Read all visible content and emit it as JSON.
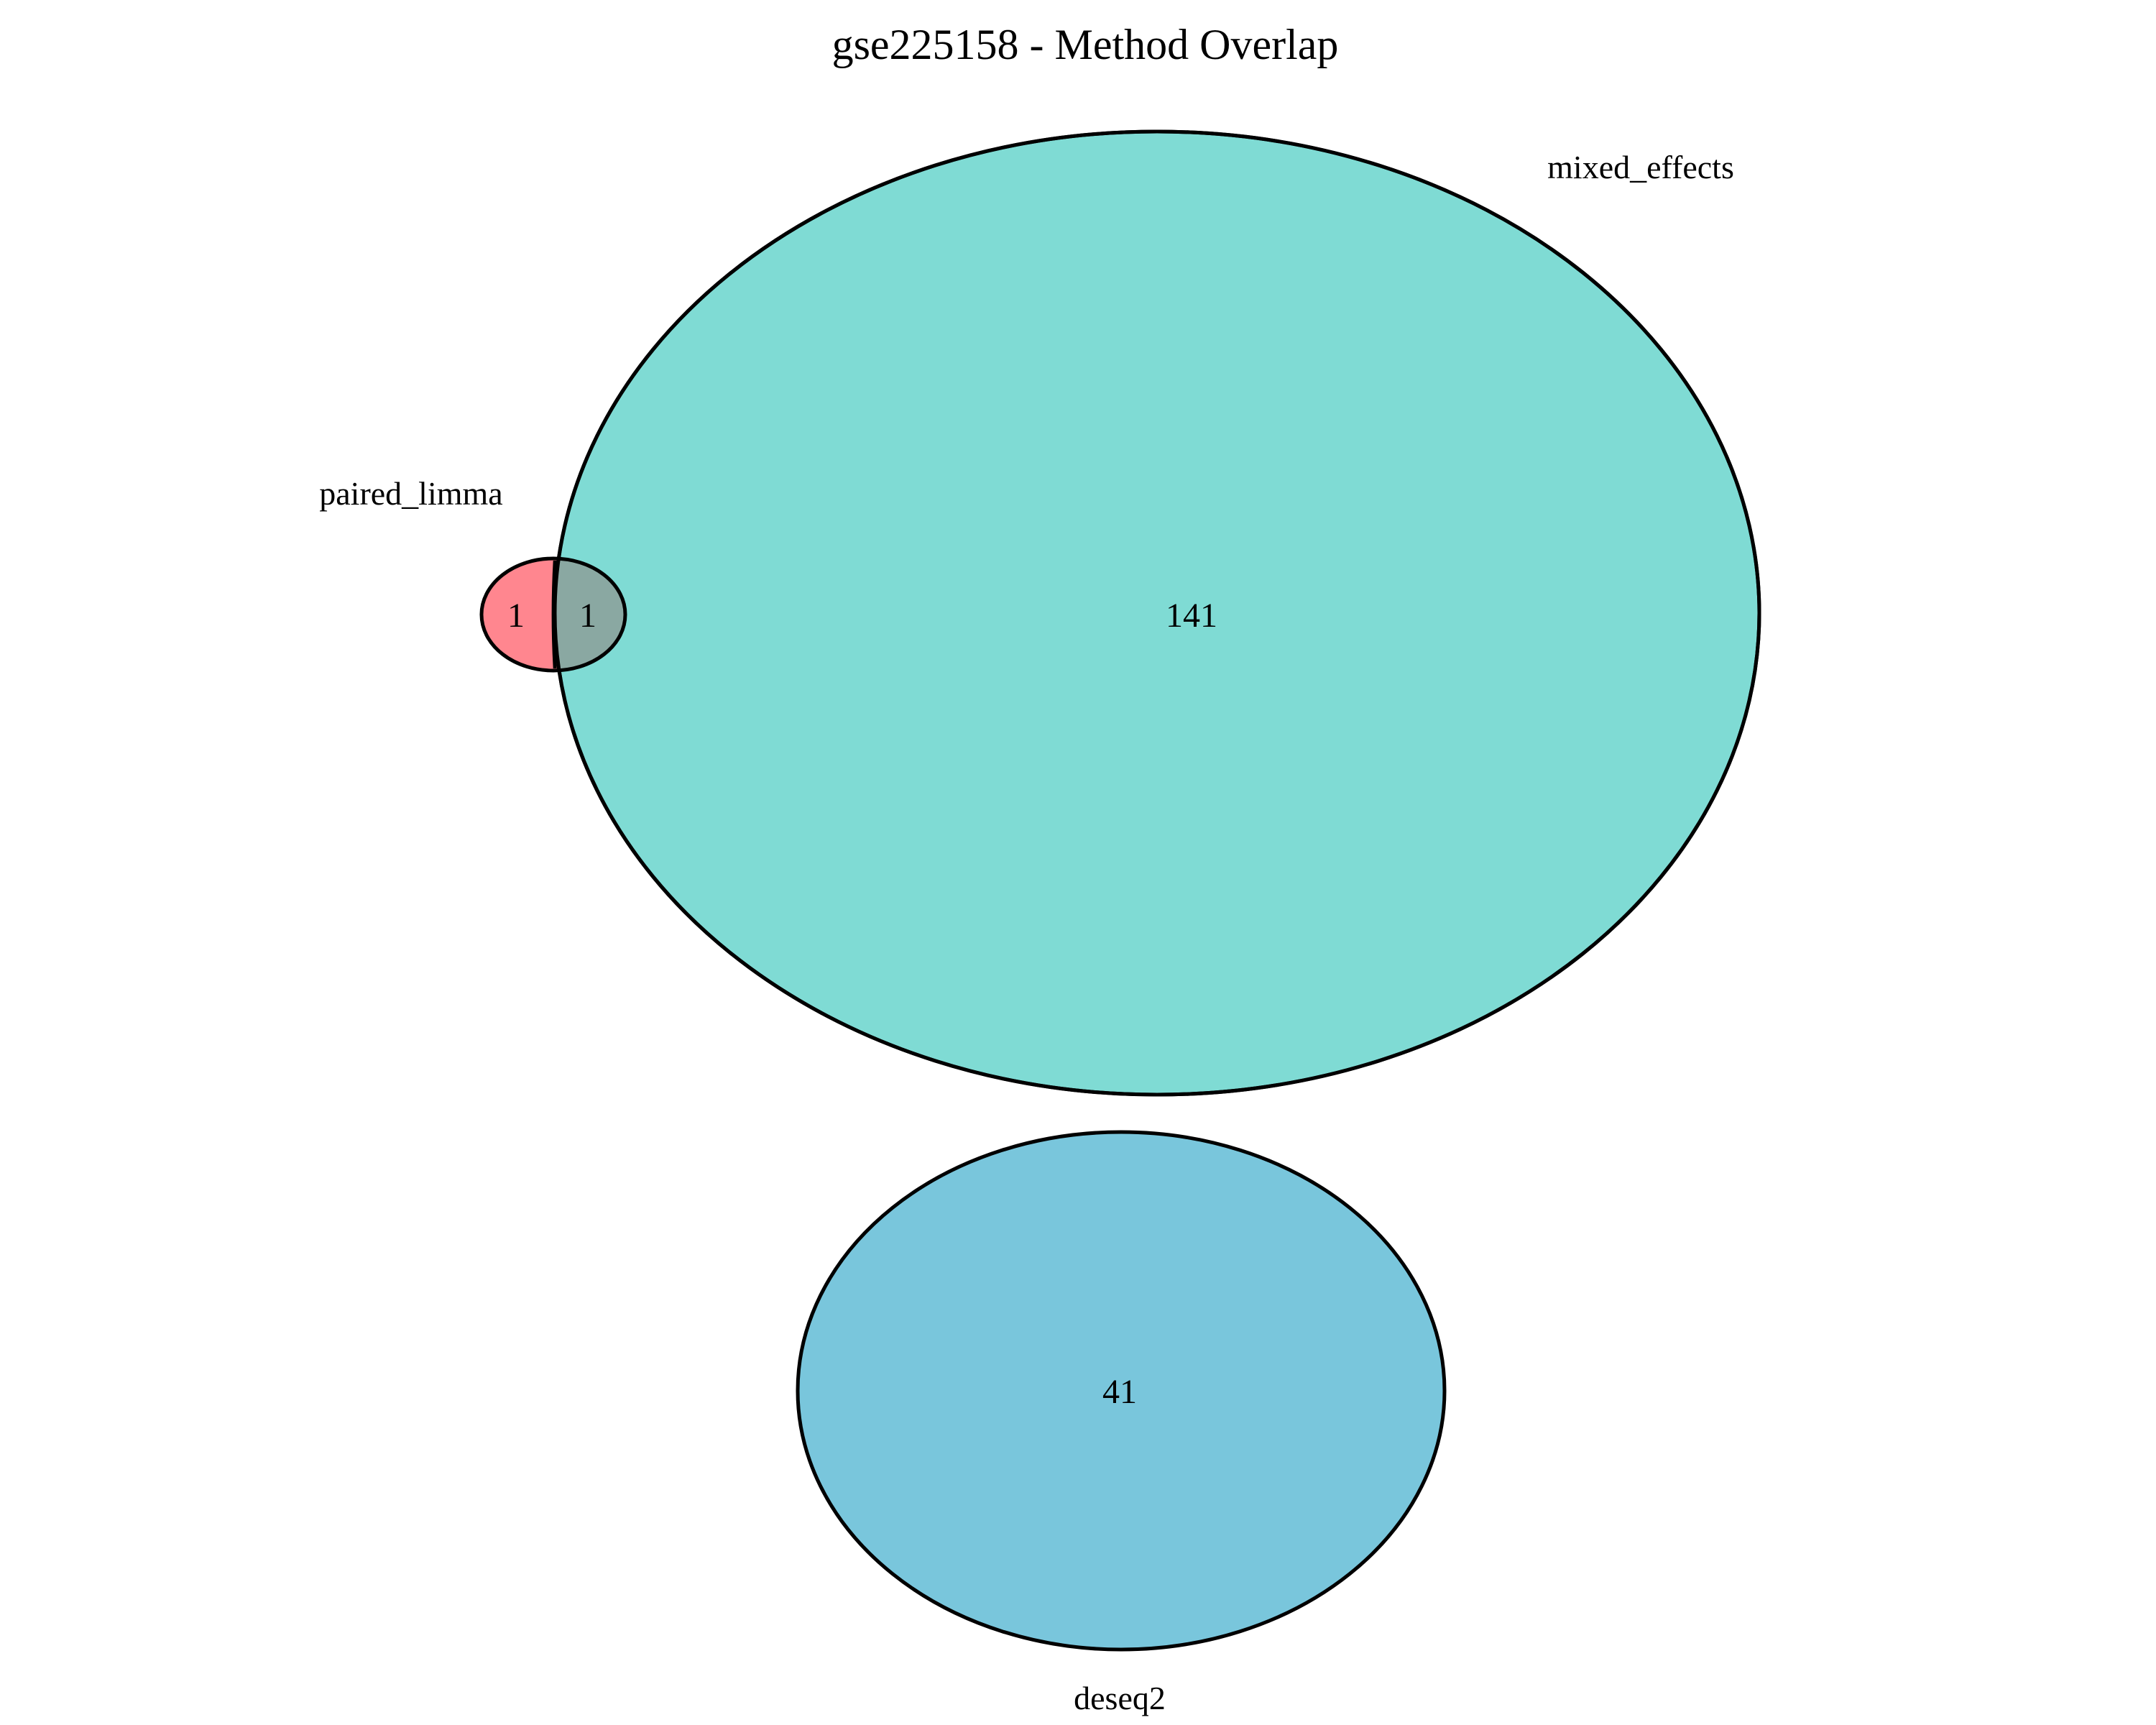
{
  "title": "gse225158 - Method Overlap",
  "sets": {
    "paired_limma": {
      "label": "paired_limma",
      "color": "#ff6b76"
    },
    "mixed_effects": {
      "label": "mixed_effects",
      "color": "#4ecdc4"
    },
    "deseq2": {
      "label": "deseq2",
      "color": "#45b0cf"
    }
  },
  "regions": {
    "paired_limma_only": "1",
    "paired_limma_and_mixed_effects": "1",
    "mixed_effects_only": "141",
    "deseq2_only": "41"
  }
}
